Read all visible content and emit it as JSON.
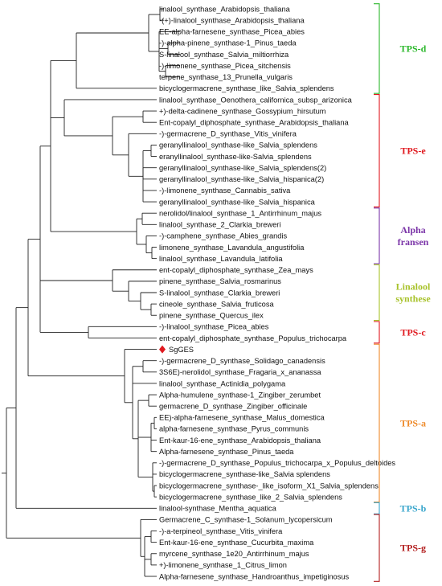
{
  "leaves": [
    "linalool_synthase_Arabidopsis_thaliana",
    "-(+)-linalool_synthase_Arabidopsis_thaliana",
    "EE-alpha-farnesene_synthase_Picea_abies",
    "-)-alpha-pinene_synthase-1_Pinus_taeda",
    "S-linalool_synthase_Salvia_miltiorrhiza",
    "-)-limonene_synthase_Picea_sitchensis",
    "terpene_synthase_13_Prunella_vulgaris",
    "bicyclogermacrene_synthase_like_Salvia_splendens",
    "linalool_synthase_Oenothera_californica_subsp_arizonica",
    "+)-delta-cadinene_synthase_Gossypium_hirsutum",
    "Ent-copalyl_diphosphate_synthase_Arabidopsis_thaliana",
    "-)-germacrene_D_synthase_Vitis_vinifera",
    "geranyllinalool_synthase-like_Salvia_splendens",
    "eranyllinalool_synthase-like-Salvia_splendens",
    "geranyllinalool_synthase-like_Salvia_splendens(2)",
    "geranyllinalool_synthase-like_Salvia_hispanica(2)",
    "-)-limonene_synthase_Cannabis_sativa",
    "geranyllinalool_synthase-like_Salvia_hispanica",
    "nerolidol/linalool_synthase_1_Antirrhinum_majus",
    "linalool_synthase_2_Clarkia_breweri",
    "-)-camphene_synthase_Abies_grandis",
    "limonene_synthase_Lavandula_angustifolia",
    "linalool_synthase_Lavandula_latifolia",
    "ent-copalyl_diphosphate_synthase_Zea_mays",
    "pinene_synthase_Salvia_rosmarinus",
    "S-linalool_synthase_Clarkia_breweri",
    "cineole_synthase_Salvia_fruticosa",
    "pinene_synthase_Quercus_ilex",
    "-)-linalool_synthase_Picea_abies",
    "ent-copalyl_diphosphate_synthase_Populus_trichocarpa",
    "SgGES",
    "-)-germacrene_D_synthase_Solidago_canadensis",
    "3S6E)-nerolidol_synthase_Fragaria_x_ananassa",
    "linalool_synthase_Actinidia_polygama",
    "Alpha-humulene_synthase-1_Zingiber_zerumbet",
    "germacrene_D_synthase_Zingiber_officinale",
    "EE)-alpha-farnesene_synthase_Malus_domestica",
    "alpha-farnesene_synthase_Pyrus_communis",
    "Ent-kaur-16-ene_synthase_Arabidopsis_thaliana",
    "Alpha-farnesene_synthase_Pinus_taeda",
    "-)-germacrene_D_synthase_Populus_trichocarpa_x_Populus_deltoides",
    "bicyclogermacrene_synthase-like_Salvia splendens",
    "bicyclogermacrene_synthase-_like_isoform_X1_Salvia_splendens",
    "bicyclogermacrene_synthase_like_2_Salvia_splendens",
    "linalool-synthase_Mentha_aquatica",
    "Germacrene_C_synthase-1_Solanum_lycopersicum",
    "-)-a-terpineol_synthase_Vitis_vinifera",
    "Ent-kaur-16-ene_synthase_Cucurbita_maxima",
    "myrcene_synthase_1e20_Antirrhinum_majus",
    "+)-limonene_synthase_1_Citrus_limon",
    "Alpha-farnesene_synthase_Handroanthus_impetiginosus"
  ],
  "highlight_leaf": "SgGES",
  "highlight_color": "#e0191f",
  "groups": [
    {
      "label": "TPS-d",
      "color": "#2db82d",
      "first": 0,
      "last": 7
    },
    {
      "label": "TPS-e",
      "color": "#e0191f",
      "first": 8,
      "last": 17
    },
    {
      "label": "Alpha\nfransen",
      "color": "#7b35a8",
      "first": 18,
      "last": 22
    },
    {
      "label": "Linalool\nsynthese",
      "color": "#a8c22b",
      "first": 23,
      "last": 27
    },
    {
      "label": "TPS-c",
      "color": "#e0191f",
      "first": 28,
      "last": 29
    },
    {
      "label": "TPS-a",
      "color": "#ee8a2a",
      "first": 30,
      "last": 43
    },
    {
      "label": "TPS-b",
      "color": "#3aa6cc",
      "first": 44,
      "last": 44
    },
    {
      "label": "TPS-g",
      "color": "#b32020",
      "first": 45,
      "last": 50
    }
  ]
}
